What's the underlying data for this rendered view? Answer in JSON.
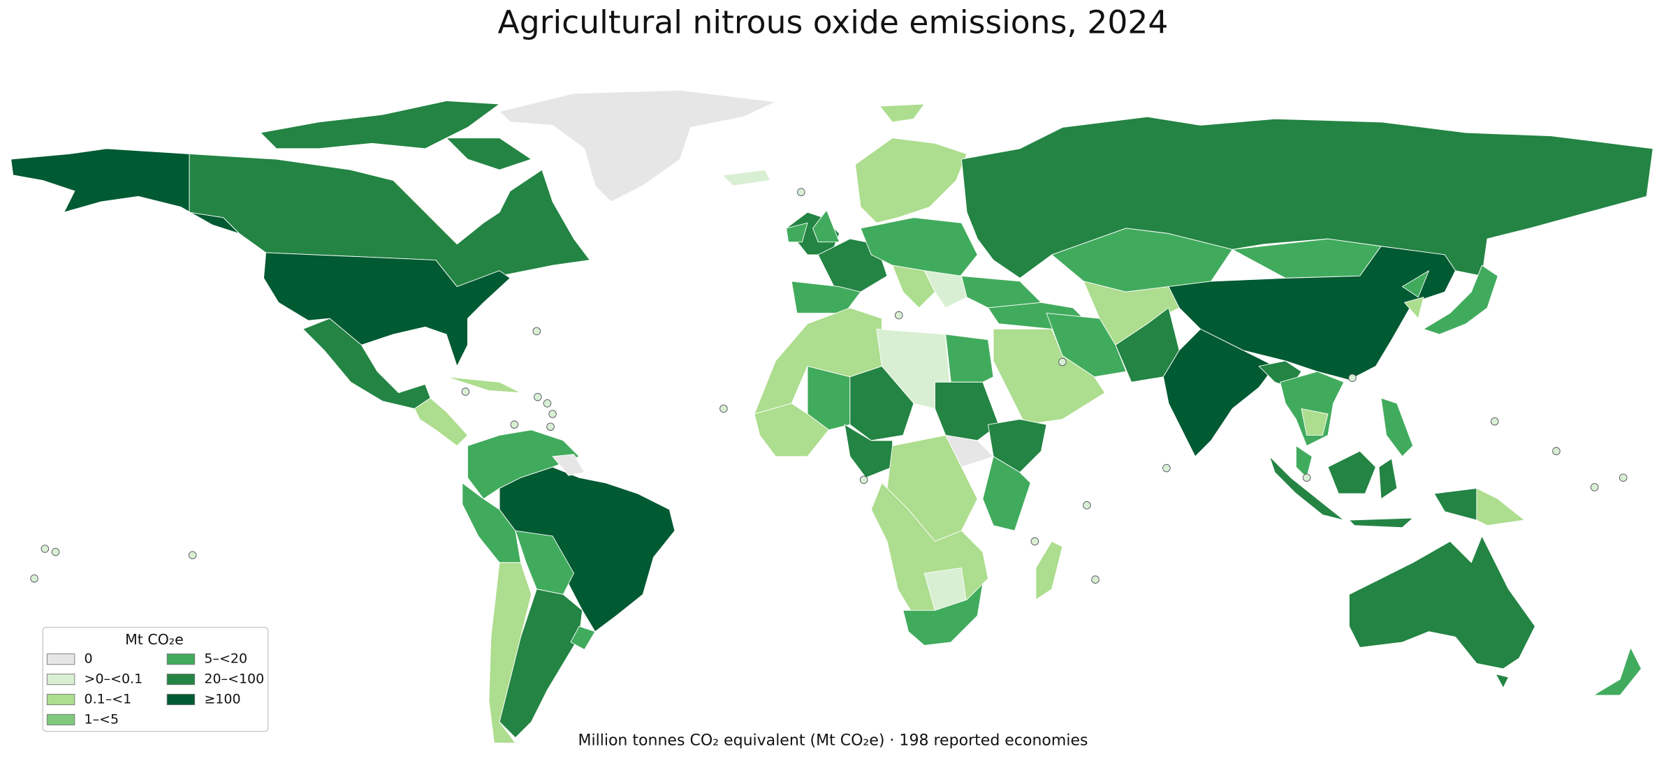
{
  "title": "Agricultural nitrous oxide emissions, 2024",
  "note": "Million tonnes CO₂ equivalent (Mt CO₂e) · 198 reported economies",
  "legend": {
    "title": "Mt CO₂e",
    "items": [
      {
        "label": "0",
        "color": "#e6e6e6"
      },
      {
        "label": ">0–<0.1",
        "color": "#d9efd3"
      },
      {
        "label": "0.1–<1",
        "color": "#addd8e"
      },
      {
        "label": "1–<5",
        "color": "#7fc97f"
      },
      {
        "label": "5–<20",
        "color": "#41ab5d"
      },
      {
        "label": "20–<100",
        "color": "#238443"
      },
      {
        "label": "≥100",
        "color": "#005a32"
      }
    ]
  }
}
